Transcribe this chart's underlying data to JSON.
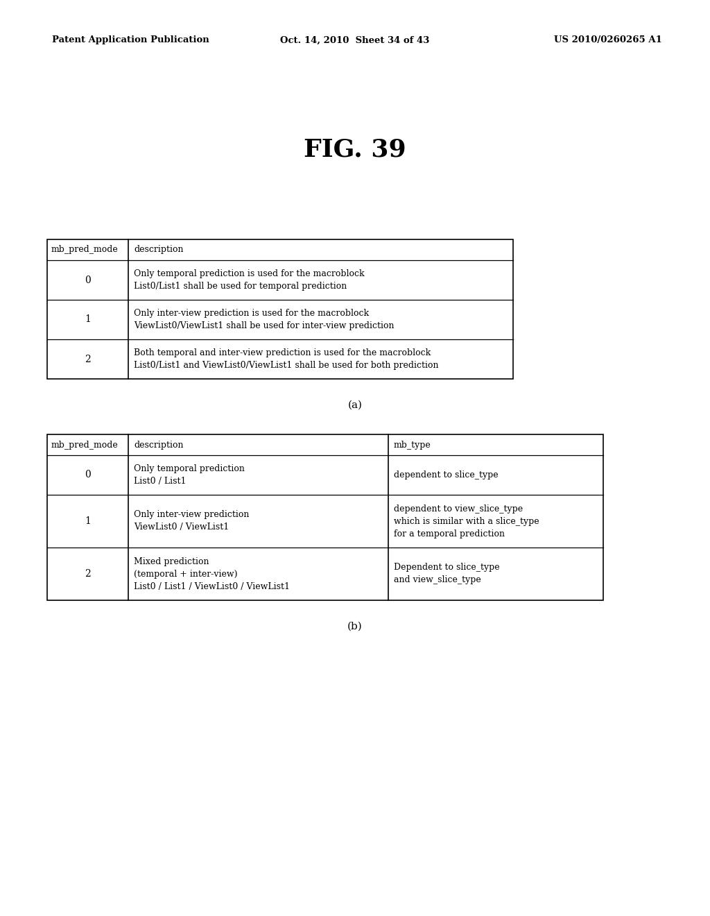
{
  "background_color": "#ffffff",
  "header_text_left": "Patent Application Publication",
  "header_text_mid": "Oct. 14, 2010  Sheet 34 of 43",
  "header_text_right": "US 2010/0260265 A1",
  "fig_title": "FIG. 39",
  "table_a_label": "(a)",
  "table_b_label": "(b)",
  "table_a": {
    "headers": [
      "mb_pred_mode",
      "description"
    ],
    "rows": [
      {
        "mode": "0",
        "desc": "Only temporal prediction is used for the macroblock\nList0/List1 shall be used for temporal prediction"
      },
      {
        "mode": "1",
        "desc": "Only inter-view prediction is used for the macroblock\nViewList0/ViewList1 shall be used for inter-view prediction"
      },
      {
        "mode": "2",
        "desc": "Both temporal and inter-view prediction is used for the macroblock\nList0/List1 and ViewList0/ViewList1 shall be used for both prediction"
      }
    ]
  },
  "table_b": {
    "headers": [
      "mb_pred_mode",
      "description",
      "mb_type"
    ],
    "rows": [
      {
        "mode": "0",
        "desc": "Only temporal prediction\nList0 / List1",
        "mb_type": "dependent to slice_type"
      },
      {
        "mode": "1",
        "desc": "Only inter-view prediction\nViewList0 / ViewList1",
        "mb_type": "dependent to view_slice_type\nwhich is similar with a slice_type\nfor a temporal prediction"
      },
      {
        "mode": "2",
        "desc": "Mixed prediction\n(temporal + inter-view)\nList0 / List1 / ViewList0 / ViewList1",
        "mb_type": "Dependent to slice_type\nand view_slice_type"
      }
    ]
  }
}
